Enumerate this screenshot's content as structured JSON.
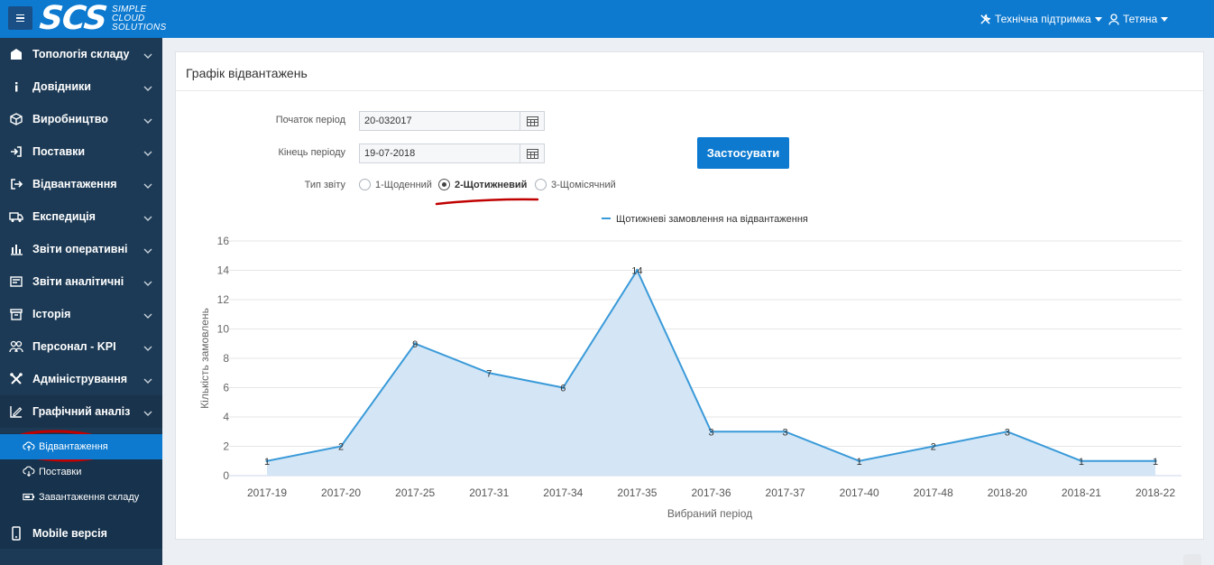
{
  "header": {
    "logo_text": "SCS",
    "logo_tagline": [
      "SIMPLE",
      "CLOUD",
      "SOLUTIONS"
    ],
    "support_label": "Технічна підтримка",
    "user_label": "Тетяна"
  },
  "sidebar": {
    "items": [
      {
        "label": "Топологія складу",
        "icon": "warehouse-icon"
      },
      {
        "label": "Довідники",
        "icon": "info-icon"
      },
      {
        "label": "Виробництво",
        "icon": "box-icon"
      },
      {
        "label": "Поставки",
        "icon": "sign-in-icon"
      },
      {
        "label": "Відвантаження",
        "icon": "sign-out-icon"
      },
      {
        "label": "Експедиція",
        "icon": "truck-icon"
      },
      {
        "label": "Звіти оперативні",
        "icon": "bar-chart-icon"
      },
      {
        "label": "Звіти аналітичні",
        "icon": "report-icon"
      },
      {
        "label": "Історія",
        "icon": "archive-icon"
      },
      {
        "label": "Персонал - KPI",
        "icon": "people-icon"
      },
      {
        "label": "Адміністрування",
        "icon": "tools-icon"
      },
      {
        "label": "Графічний аналіз",
        "icon": "chart-edit-icon"
      }
    ],
    "subitems": [
      {
        "label": "Відвантаження",
        "icon": "cloud-upload-icon"
      },
      {
        "label": "Поставки",
        "icon": "cloud-download-icon"
      },
      {
        "label": "Завантаження складу",
        "icon": "battery-icon"
      }
    ],
    "mobile_label": "Mobile версія"
  },
  "panel": {
    "title": "Графік відвантажень",
    "start_label": "Початок період",
    "start_value": "20-032017",
    "end_label": "Кінець періоду",
    "end_value": "19-07-2018",
    "report_type_label": "Тип звіту",
    "report_types": [
      "1-Щоденний",
      "2-Щотижневий",
      "3-Щомісячний"
    ],
    "selected_report_type": "2-Щотижневий",
    "apply_label": "Застосувати"
  },
  "colors": {
    "primary": "#0d7ad0",
    "sidebar": "#1c3a55",
    "series_line": "#3a9ad9",
    "series_fill": "#d4e6f5",
    "annotation": "#c00000"
  },
  "chart_data": {
    "type": "area",
    "legend": "Щотижневі замовлення на відвантаження",
    "legend_position": "top-center",
    "xlabel": "Вибраний період",
    "ylabel": "Кількість замовлень",
    "categories": [
      "2017-19",
      "2017-20",
      "2017-25",
      "2017-31",
      "2017-34",
      "2017-35",
      "2017-36",
      "2017-37",
      "2017-40",
      "2017-48",
      "2018-20",
      "2018-21",
      "2018-22"
    ],
    "series": [
      {
        "name": "Щотижневі замовлення на відвантаження",
        "values": [
          1,
          2,
          9,
          7,
          6,
          14,
          3,
          3,
          1,
          2,
          3,
          1,
          1
        ]
      }
    ],
    "ylim": [
      0,
      16
    ],
    "yticks": [
      0,
      2,
      4,
      6,
      8,
      10,
      12,
      14,
      16
    ],
    "grid": true
  }
}
